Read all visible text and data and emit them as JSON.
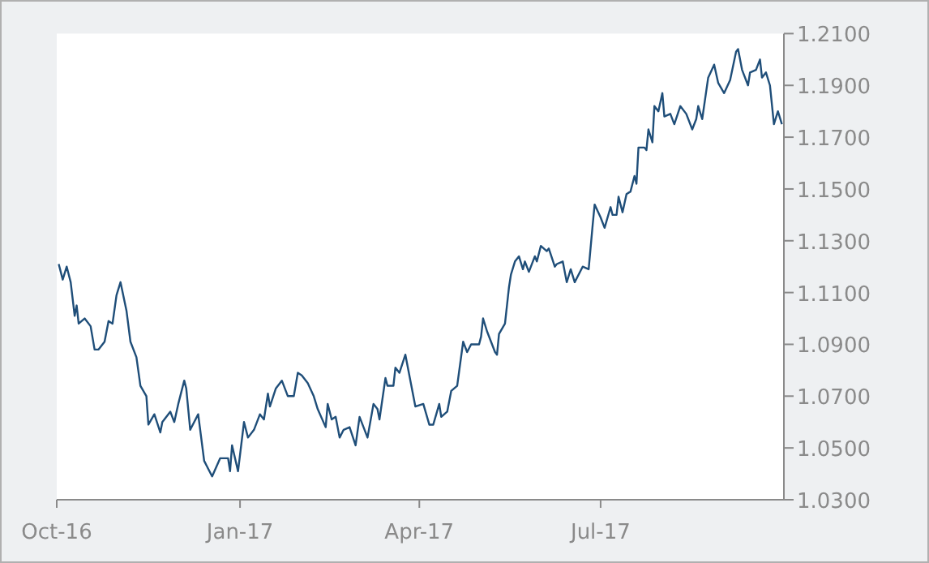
{
  "chart_data": {
    "type": "line",
    "x": [
      "2016-10-02",
      "2016-10-04",
      "2016-10-06",
      "2016-10-08",
      "2016-10-10",
      "2016-10-11",
      "2016-10-12",
      "2016-10-15",
      "2016-10-18",
      "2016-10-20",
      "2016-10-22",
      "2016-10-25",
      "2016-10-27",
      "2016-10-29",
      "2016-10-31",
      "2016-11-02",
      "2016-11-05",
      "2016-11-07",
      "2016-11-10",
      "2016-11-12",
      "2016-11-15",
      "2016-11-16",
      "2016-11-19",
      "2016-11-22",
      "2016-11-23",
      "2016-11-27",
      "2016-11-29",
      "2016-12-01",
      "2016-12-04",
      "2016-12-05",
      "2016-12-07",
      "2016-12-11",
      "2016-12-14",
      "2016-12-18",
      "2016-12-22",
      "2016-12-26",
      "2016-12-27",
      "2016-12-28",
      "2016-12-31",
      "2017-01-03",
      "2017-01-05",
      "2017-01-08",
      "2017-01-11",
      "2017-01-13",
      "2017-01-15",
      "2017-01-16",
      "2017-01-19",
      "2017-01-22",
      "2017-01-25",
      "2017-01-28",
      "2017-01-30",
      "2017-02-01",
      "2017-02-04",
      "2017-02-07",
      "2017-02-09",
      "2017-02-13",
      "2017-02-14",
      "2017-02-16",
      "2017-02-18",
      "2017-02-20",
      "2017-02-22",
      "2017-02-25",
      "2017-02-28",
      "2017-03-02",
      "2017-03-06",
      "2017-03-09",
      "2017-03-11",
      "2017-03-12",
      "2017-03-15",
      "2017-03-16",
      "2017-03-19",
      "2017-03-20",
      "2017-03-22",
      "2017-03-25",
      "2017-03-28",
      "2017-03-30",
      "2017-04-03",
      "2017-04-06",
      "2017-04-08",
      "2017-04-11",
      "2017-04-12",
      "2017-04-15",
      "2017-04-17",
      "2017-04-20",
      "2017-04-23",
      "2017-04-25",
      "2017-04-27",
      "2017-05-01",
      "2017-05-02",
      "2017-05-03",
      "2017-05-05",
      "2017-05-09",
      "2017-05-10",
      "2017-05-11",
      "2017-05-14",
      "2017-05-16",
      "2017-05-17",
      "2017-05-19",
      "2017-05-21",
      "2017-05-23",
      "2017-05-24",
      "2017-05-26",
      "2017-05-29",
      "2017-05-30",
      "2017-06-01",
      "2017-06-04",
      "2017-06-05",
      "2017-06-08",
      "2017-06-09",
      "2017-06-12",
      "2017-06-14",
      "2017-06-16",
      "2017-06-18",
      "2017-06-22",
      "2017-06-25",
      "2017-06-27",
      "2017-06-28",
      "2017-07-01",
      "2017-07-03",
      "2017-07-06",
      "2017-07-07",
      "2017-07-09",
      "2017-07-10",
      "2017-07-12",
      "2017-07-14",
      "2017-07-16",
      "2017-07-18",
      "2017-07-19",
      "2017-07-20",
      "2017-07-23",
      "2017-07-24",
      "2017-07-25",
      "2017-07-27",
      "2017-07-28",
      "2017-07-30",
      "2017-08-01",
      "2017-08-02",
      "2017-08-05",
      "2017-08-07",
      "2017-08-10",
      "2017-08-13",
      "2017-08-16",
      "2017-08-18",
      "2017-08-19",
      "2017-08-21",
      "2017-08-24",
      "2017-08-27",
      "2017-08-29",
      "2017-09-01",
      "2017-09-04",
      "2017-09-07",
      "2017-09-08",
      "2017-09-10",
      "2017-09-13",
      "2017-09-14",
      "2017-09-17",
      "2017-09-19",
      "2017-09-20",
      "2017-09-22",
      "2017-09-24",
      "2017-09-26",
      "2017-09-28",
      "2017-09-30"
    ],
    "series": [
      {
        "color": "#1f4e79",
        "values": [
          1.121,
          1.115,
          1.12,
          1.114,
          1.101,
          1.105,
          1.098,
          1.1,
          1.097,
          1.088,
          1.088,
          1.091,
          1.099,
          1.098,
          1.109,
          1.114,
          1.103,
          1.091,
          1.085,
          1.074,
          1.07,
          1.059,
          1.063,
          1.056,
          1.06,
          1.064,
          1.06,
          1.067,
          1.076,
          1.073,
          1.057,
          1.063,
          1.045,
          1.039,
          1.046,
          1.046,
          1.041,
          1.051,
          1.041,
          1.06,
          1.054,
          1.057,
          1.063,
          1.061,
          1.071,
          1.066,
          1.073,
          1.076,
          1.07,
          1.07,
          1.079,
          1.078,
          1.075,
          1.07,
          1.065,
          1.058,
          1.067,
          1.061,
          1.062,
          1.054,
          1.057,
          1.058,
          1.051,
          1.062,
          1.054,
          1.067,
          1.065,
          1.061,
          1.077,
          1.074,
          1.074,
          1.081,
          1.079,
          1.086,
          1.074,
          1.066,
          1.067,
          1.059,
          1.059,
          1.067,
          1.062,
          1.064,
          1.072,
          1.074,
          1.091,
          1.087,
          1.09,
          1.09,
          1.093,
          1.1,
          1.095,
          1.087,
          1.086,
          1.094,
          1.098,
          1.112,
          1.117,
          1.122,
          1.124,
          1.119,
          1.122,
          1.118,
          1.124,
          1.122,
          1.128,
          1.126,
          1.127,
          1.12,
          1.121,
          1.122,
          1.114,
          1.119,
          1.114,
          1.12,
          1.119,
          1.136,
          1.144,
          1.139,
          1.135,
          1.143,
          1.14,
          1.14,
          1.147,
          1.141,
          1.148,
          1.149,
          1.155,
          1.152,
          1.166,
          1.166,
          1.165,
          1.173,
          1.168,
          1.182,
          1.18,
          1.187,
          1.178,
          1.179,
          1.175,
          1.182,
          1.179,
          1.173,
          1.177,
          1.182,
          1.177,
          1.193,
          1.198,
          1.191,
          1.187,
          1.192,
          1.203,
          1.204,
          1.196,
          1.19,
          1.195,
          1.196,
          1.2,
          1.193,
          1.195,
          1.19,
          1.175,
          1.18,
          1.175
        ]
      }
    ],
    "xlim": [
      "2016-10-01",
      "2017-10-01"
    ],
    "xticks": [
      {
        "value": "2016-10-01",
        "label": "Oct-16"
      },
      {
        "value": "2017-01-01",
        "label": "Jan-17"
      },
      {
        "value": "2017-04-01",
        "label": "Apr-17"
      },
      {
        "value": "2017-07-01",
        "label": "Jul-17"
      }
    ],
    "ylim": [
      1.03,
      1.21
    ],
    "yticks": [
      {
        "value": 1.03,
        "label": "1.0300"
      },
      {
        "value": 1.05,
        "label": "1.0500"
      },
      {
        "value": 1.07,
        "label": "1.0700"
      },
      {
        "value": 1.09,
        "label": "1.0900"
      },
      {
        "value": 1.11,
        "label": "1.1100"
      },
      {
        "value": 1.13,
        "label": "1.1300"
      },
      {
        "value": 1.15,
        "label": "1.1500"
      },
      {
        "value": 1.17,
        "label": "1.1700"
      },
      {
        "value": 1.19,
        "label": "1.1900"
      },
      {
        "value": 1.21,
        "label": "1.2100"
      }
    ]
  }
}
